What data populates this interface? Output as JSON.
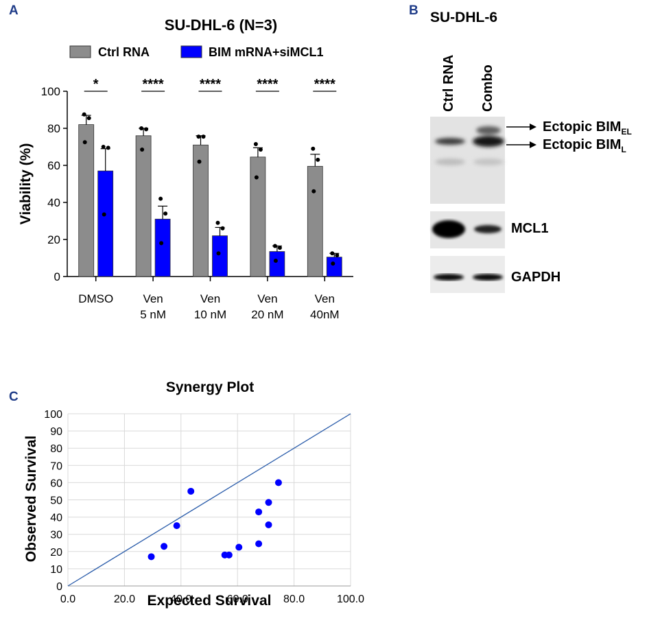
{
  "panel_a": {
    "letter": "A",
    "title": "SU-DHL-6 (N=3)",
    "legend": [
      {
        "label": "Ctrl RNA",
        "color": "#8c8c8c"
      },
      {
        "label": "BIM mRNA+siMCL1",
        "color": "#0000ff"
      }
    ]
  },
  "panel_b": {
    "letter": "B",
    "title": "SU-DHL-6",
    "lanes": [
      "Ctrl RNA",
      "Combo"
    ],
    "band_labels": {
      "bim_el_main": "Ectopic BIM",
      "bim_el_sub": "EL",
      "bim_l_main": "Ectopic BIM",
      "bim_l_sub": "L",
      "mcl1": "MCL1",
      "gapdh": "GAPDH"
    }
  },
  "panel_c": {
    "letter": "C"
  },
  "colors": {
    "ctrl": "#8c8c8c",
    "combo": "#0000ff",
    "panel_letter": "#1f3c88",
    "diag_line": "#2a5caa",
    "grid": "#d9d9d9"
  },
  "chart_data": [
    {
      "type": "bar",
      "title": "SU-DHL-6 (N=3)",
      "xlabel": "",
      "ylabel": "Viability (%)",
      "ylim": [
        0,
        100
      ],
      "yticks": [
        0,
        20,
        40,
        60,
        80,
        100
      ],
      "categories": [
        [
          "DMSO"
        ],
        [
          "Ven",
          "5 nM"
        ],
        [
          "Ven",
          "10 nM"
        ],
        [
          "Ven",
          "20 nM"
        ],
        [
          "Ven",
          "40nM"
        ]
      ],
      "significance": [
        "*",
        "****",
        "****",
        "****",
        "****"
      ],
      "series": [
        {
          "name": "Ctrl RNA",
          "values": [
            82,
            76,
            71,
            64.5,
            59.5
          ],
          "errors": [
            5,
            4,
            5,
            5,
            6.5
          ],
          "points": [
            [
              87.5,
              85.5,
              72.5
            ],
            [
              80,
              79.5,
              68.5
            ],
            [
              75.5,
              75.5,
              62
            ],
            [
              71.5,
              68.5,
              53.5
            ],
            [
              69,
              63,
              46
            ]
          ]
        },
        {
          "name": "BIM mRNA+siMCL1",
          "values": [
            57,
            31,
            22,
            13.5,
            10.5
          ],
          "errors": [
            12,
            7,
            4.5,
            3,
            2
          ],
          "points": [
            [
              70,
              69.5,
              33.5
            ],
            [
              42,
              34,
              18
            ],
            [
              29,
              26,
              12.5
            ],
            [
              16.5,
              15.5,
              8.5
            ],
            [
              12.5,
              11.5,
              7
            ]
          ]
        }
      ]
    },
    {
      "type": "scatter",
      "title": "Synergy Plot",
      "xlabel": "Expected Survival",
      "ylabel": "Observed Survival",
      "xlim": [
        0,
        100
      ],
      "ylim": [
        0,
        100
      ],
      "xticks": [
        "0.0",
        "20.0",
        "40.0",
        "60.0",
        "80.0",
        "100.0"
      ],
      "yticks": [
        "0",
        "10",
        "20",
        "30",
        "40",
        "50",
        "60",
        "70",
        "80",
        "90",
        "100"
      ],
      "reference_line": "y = x",
      "points": [
        {
          "x": 29.5,
          "y": 17
        },
        {
          "x": 34,
          "y": 23
        },
        {
          "x": 38.5,
          "y": 35
        },
        {
          "x": 43.5,
          "y": 55
        },
        {
          "x": 55.5,
          "y": 18
        },
        {
          "x": 57,
          "y": 18
        },
        {
          "x": 60.5,
          "y": 22.5
        },
        {
          "x": 67.5,
          "y": 43
        },
        {
          "x": 67.5,
          "y": 24.5
        },
        {
          "x": 71,
          "y": 48.5
        },
        {
          "x": 71,
          "y": 35.5
        },
        {
          "x": 74.5,
          "y": 60
        }
      ]
    }
  ]
}
